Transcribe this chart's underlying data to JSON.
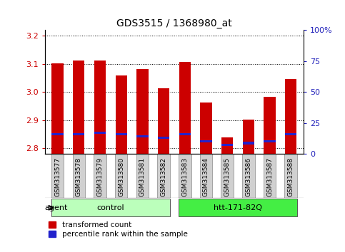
{
  "title": "GDS3515 / 1368980_at",
  "samples": [
    "GSM313577",
    "GSM313578",
    "GSM313579",
    "GSM313580",
    "GSM313581",
    "GSM313582",
    "GSM313583",
    "GSM313584",
    "GSM313585",
    "GSM313586",
    "GSM313587",
    "GSM313588"
  ],
  "transformed_count": [
    3.102,
    3.112,
    3.112,
    3.058,
    3.082,
    3.014,
    3.108,
    2.962,
    2.838,
    2.901,
    2.982,
    3.046
  ],
  "percentile_rank_pct": [
    15.7,
    15.7,
    17.1,
    15.7,
    14.3,
    12.9,
    15.7,
    10.0,
    7.1,
    8.6,
    10.0,
    15.7
  ],
  "ylim_left": [
    2.78,
    3.22
  ],
  "ylim_right": [
    0,
    100
  ],
  "yticks_left": [
    2.8,
    2.9,
    3.0,
    3.1,
    3.2
  ],
  "yticks_right": [
    0,
    25,
    50,
    75,
    100
  ],
  "ytick_labels_right": [
    "0",
    "25",
    "50",
    "75",
    "100%"
  ],
  "bar_color": "#cc0000",
  "blue_color": "#2222cc",
  "bar_width": 0.55,
  "groups": [
    {
      "label": "control",
      "start": 0,
      "end": 5,
      "color": "#bbffbb"
    },
    {
      "label": "htt-171-82Q",
      "start": 6,
      "end": 11,
      "color": "#44ee44"
    }
  ],
  "agent_label": "agent",
  "legend_items": [
    {
      "color": "#cc0000",
      "label": "transformed count"
    },
    {
      "color": "#2222cc",
      "label": "percentile rank within the sample"
    }
  ],
  "background_color": "#ffffff",
  "title_fontsize": 10,
  "tick_fontsize": 8,
  "base_value": 2.78
}
